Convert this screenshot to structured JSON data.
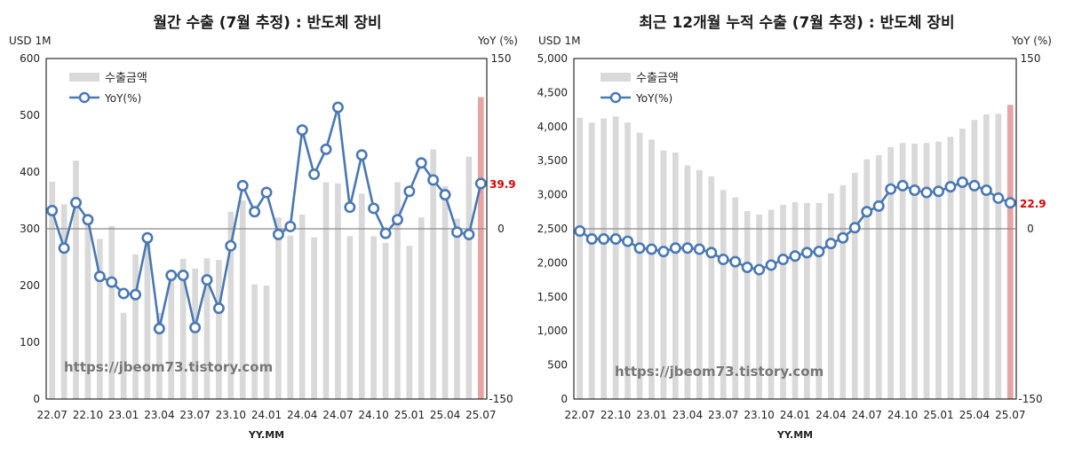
{
  "chart_data": [
    {
      "type": "bar",
      "title": "월간 수출 (7월 추정) : 반도체 장비",
      "y_unit": "USD 1M",
      "y2_unit": "YoY (%)",
      "xlabel": "YY.MM",
      "ylim": [
        0,
        600
      ],
      "yticks": [
        "0",
        "100",
        "200",
        "300",
        "400",
        "500",
        "600"
      ],
      "y2lim": [
        -150,
        150
      ],
      "y2ticks": [
        "-150",
        "0",
        "150"
      ],
      "xticks": [
        "22.07",
        "22.10",
        "23.01",
        "23.04",
        "23.07",
        "23.10",
        "24.01",
        "24.04",
        "24.07",
        "24.10",
        "25.01",
        "25.04",
        "25.07"
      ],
      "legend": [
        "수출금액",
        "YoY(%)"
      ],
      "watermark": "https://jbeom73.tistory.com",
      "last_label": "39.9",
      "bar_color": "#d9d9d9",
      "last_bar_color": "#e6a5a5",
      "line_color": "#4a78b4",
      "categories": [
        "22.07",
        "22.08",
        "22.09",
        "22.10",
        "22.11",
        "22.12",
        "23.01",
        "23.02",
        "23.03",
        "23.04",
        "23.05",
        "23.06",
        "23.07",
        "23.08",
        "23.09",
        "23.10",
        "23.11",
        "23.12",
        "24.01",
        "24.02",
        "24.03",
        "24.04",
        "24.05",
        "24.06",
        "24.07",
        "24.08",
        "24.09",
        "24.10",
        "24.11",
        "24.12",
        "25.01",
        "25.02",
        "25.03",
        "25.04",
        "25.05",
        "25.06",
        "25.07"
      ],
      "series": [
        {
          "name": "수출금액",
          "values": [
            383,
            343,
            420,
            320,
            282,
            305,
            152,
            255,
            280,
            152,
            215,
            247,
            230,
            248,
            245,
            330,
            350,
            202,
            200,
            320,
            288,
            325,
            285,
            382,
            380,
            287,
            362,
            287,
            275,
            382,
            270,
            320,
            440,
            375,
            318,
            427,
            532
          ]
        },
        {
          "name": "YoY(%)",
          "values": [
            16,
            -17,
            23,
            8,
            -42,
            -47,
            -57,
            -58,
            -8,
            -88,
            -41,
            -41,
            -87,
            -45,
            -70,
            -15,
            38,
            15,
            32,
            -5,
            2,
            87,
            48,
            70,
            107,
            19,
            65,
            18,
            -4,
            8,
            33,
            58,
            43,
            30,
            -3,
            -5,
            39.9
          ]
        }
      ]
    },
    {
      "type": "bar",
      "title": "최근 12개월 누적 수출 (7월 추정) : 반도체 장비",
      "y_unit": "USD 1M",
      "y2_unit": "YoY (%)",
      "xlabel": "YY.MM",
      "ylim": [
        0,
        5000
      ],
      "yticks": [
        "0",
        "500",
        "1,000",
        "1,500",
        "2,000",
        "2,500",
        "3,000",
        "3,500",
        "4,000",
        "4,500",
        "5,000"
      ],
      "y2lim": [
        -150,
        150
      ],
      "y2ticks": [
        "-150",
        "0",
        "150"
      ],
      "xticks": [
        "22.07",
        "22.10",
        "23.01",
        "23.04",
        "23.07",
        "23.10",
        "24.01",
        "24.04",
        "24.07",
        "24.10",
        "25.01",
        "25.04",
        "25.07"
      ],
      "legend": [
        "수출금액",
        "YoY(%)"
      ],
      "watermark": "https://jbeom73.tistory.com",
      "last_label": "22.9",
      "bar_color": "#d9d9d9",
      "last_bar_color": "#e6a5a5",
      "line_color": "#4a78b4",
      "categories": [
        "22.07",
        "22.08",
        "22.09",
        "22.10",
        "22.11",
        "22.12",
        "23.01",
        "23.02",
        "23.03",
        "23.04",
        "23.05",
        "23.06",
        "23.07",
        "23.08",
        "23.09",
        "23.10",
        "23.11",
        "23.12",
        "24.01",
        "24.02",
        "24.03",
        "24.04",
        "24.05",
        "24.06",
        "24.07",
        "24.08",
        "24.09",
        "24.10",
        "24.11",
        "24.12",
        "25.01",
        "25.02",
        "25.03",
        "25.04",
        "25.05",
        "25.06",
        "25.07"
      ],
      "series": [
        {
          "name": "수출금액",
          "values": [
            4130,
            4060,
            4120,
            4150,
            4060,
            3910,
            3810,
            3650,
            3620,
            3430,
            3360,
            3270,
            3070,
            2960,
            2760,
            2710,
            2780,
            2850,
            2890,
            2880,
            2880,
            3020,
            3140,
            3320,
            3520,
            3580,
            3700,
            3760,
            3750,
            3760,
            3780,
            3850,
            3970,
            4100,
            4180,
            4190,
            4320
          ]
        },
        {
          "name": "YoY(%)",
          "values": [
            -2,
            -9,
            -9,
            -9,
            -11,
            -17,
            -18,
            -20,
            -17,
            -17,
            -18,
            -21,
            -27,
            -29,
            -34,
            -36,
            -32,
            -27,
            -24,
            -21,
            -20,
            -13,
            -8,
            1,
            15,
            20,
            35,
            38,
            34,
            32,
            33,
            37,
            41,
            38,
            34,
            27,
            22.9
          ]
        }
      ]
    }
  ]
}
